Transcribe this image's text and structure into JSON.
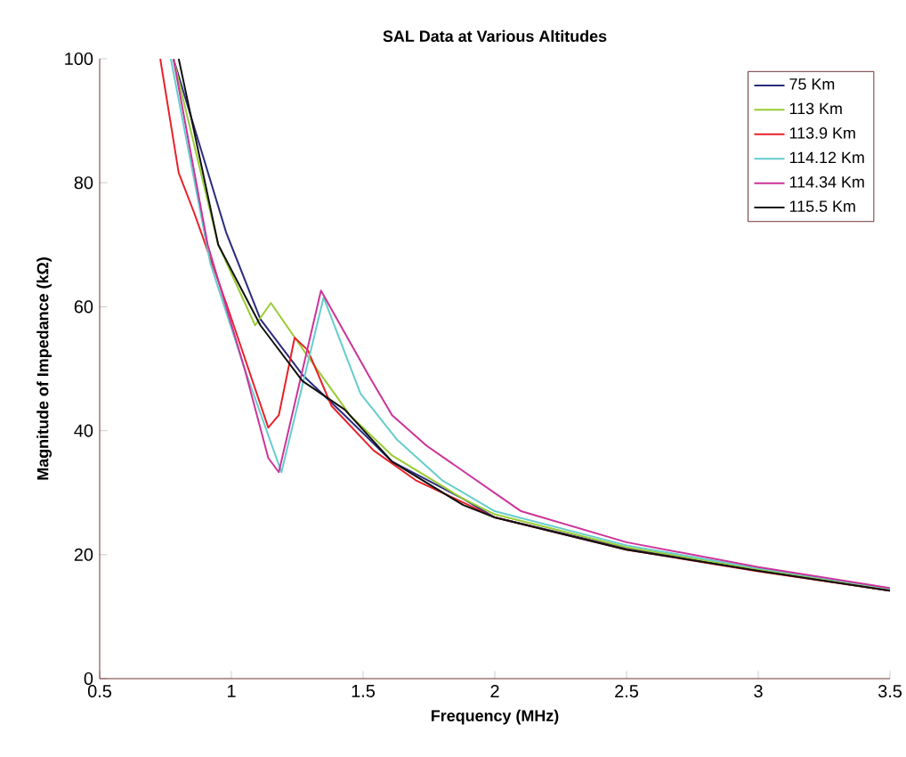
{
  "chart_data": {
    "type": "line",
    "title": "SAL Data at Various Altitudes",
    "xlabel": "Frequency (MHz)",
    "ylabel": "Magnitude of Impedance (kΩ)",
    "xlim": [
      0.5,
      3.5
    ],
    "ylim": [
      0,
      100
    ],
    "xticks": [
      0.5,
      1,
      1.5,
      2,
      2.5,
      3,
      3.5
    ],
    "yticks": [
      0,
      20,
      40,
      60,
      80,
      100
    ],
    "grid": false,
    "legend": "top right",
    "series": [
      {
        "name": "75 Km",
        "color": "#2b2b80",
        "x": [
          0.78,
          0.98,
          1.11,
          1.27,
          1.43,
          1.61,
          1.88,
          2.0,
          2.5,
          3.0,
          3.5
        ],
        "values": [
          100,
          72,
          58,
          49,
          42.5,
          35,
          29,
          26,
          21,
          17.5,
          14.2
        ]
      },
      {
        "name": "113 Km",
        "color": "#99cc33",
        "x": [
          0.78,
          0.95,
          1.09,
          1.15,
          1.29,
          1.45,
          1.61,
          1.88,
          2.0,
          2.5,
          3.0,
          3.5
        ],
        "values": [
          100,
          70,
          57,
          60.6,
          52,
          42.5,
          36,
          29,
          26.5,
          21.2,
          17.6,
          14.4
        ]
      },
      {
        "name": "113.9 Km",
        "color": "#e8202a",
        "x": [
          0.73,
          0.8,
          0.86,
          0.98,
          1.14,
          1.18,
          1.24,
          1.29,
          1.38,
          1.54,
          1.7,
          2.0,
          2.5,
          3.0,
          3.5
        ],
        "values": [
          100,
          81.6,
          75,
          60.6,
          40.5,
          42.5,
          55,
          53,
          44,
          36.8,
          32,
          26,
          20.8,
          17.3,
          14.2
        ]
      },
      {
        "name": "114.12 Km",
        "color": "#66cccc",
        "x": [
          0.77,
          0.92,
          1.05,
          1.19,
          1.35,
          1.49,
          1.63,
          1.8,
          2.0,
          2.5,
          3.0,
          3.5
        ],
        "values": [
          100,
          67,
          50,
          33.3,
          61.5,
          46,
          38.5,
          32,
          27,
          21.5,
          17.8,
          14.5
        ]
      },
      {
        "name": "114.34 Km",
        "color": "#cc3399",
        "x": [
          0.78,
          0.91,
          1.05,
          1.14,
          1.18,
          1.34,
          1.52,
          1.61,
          1.74,
          2.1,
          2.5,
          3.0,
          3.5
        ],
        "values": [
          100,
          70,
          50,
          35.6,
          33.3,
          62.6,
          49,
          42.5,
          37.6,
          27,
          22,
          18,
          14.6
        ]
      },
      {
        "name": "115.5 Km",
        "color": "#111111",
        "x": [
          0.8,
          0.95,
          1.11,
          1.27,
          1.43,
          1.61,
          1.88,
          2.0,
          2.5,
          3.0,
          3.5
        ],
        "values": [
          100,
          70,
          57,
          48,
          43.4,
          35,
          28,
          26,
          20.8,
          17.4,
          14.2
        ]
      }
    ]
  }
}
